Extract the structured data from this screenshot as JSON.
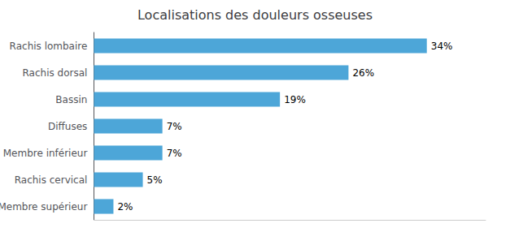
{
  "chart_data": {
    "type": "bar",
    "orientation": "horizontal",
    "title": "Localisations des douleurs osseuses",
    "categories": [
      "Membre supérieur",
      "Rachis cervical",
      "Membre inférieur",
      "Diffuses",
      "Bassin",
      "Rachis dorsal",
      "Rachis lombaire"
    ],
    "values": [
      2,
      5,
      7,
      7,
      19,
      26,
      34
    ],
    "value_labels": [
      "2%",
      "5%",
      "7%",
      "7%",
      "19%",
      "26%",
      "34%"
    ],
    "data_labels": true,
    "color": "#4da6d8",
    "xlim": [
      0,
      40
    ],
    "tick_labels": "y",
    "grid": false
  }
}
